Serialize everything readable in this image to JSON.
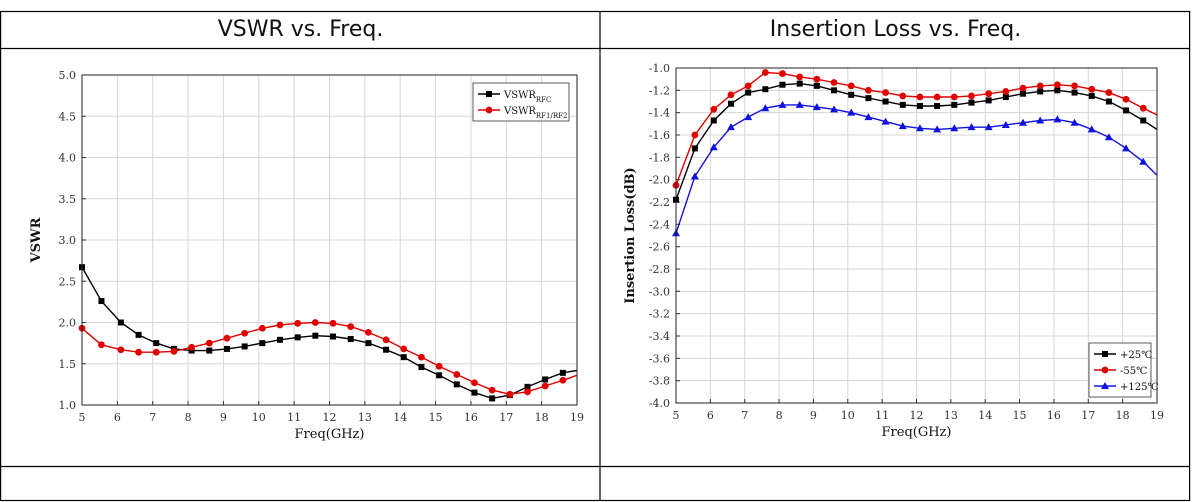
{
  "headers": {
    "left": "VSWR vs. Freq.",
    "right": "Insertion Loss vs. Freq."
  },
  "chart_data": [
    {
      "type": "line",
      "title": "",
      "xlabel": "Freq(GHz)",
      "ylabel": "VSWR",
      "xlim": [
        5,
        19
      ],
      "ylim": [
        1.0,
        5.0
      ],
      "xticks": [
        5,
        6,
        7,
        8,
        9,
        10,
        11,
        12,
        13,
        14,
        15,
        16,
        17,
        18,
        19
      ],
      "yticks": [
        1.0,
        1.5,
        2.0,
        2.5,
        3.0,
        3.5,
        4.0,
        4.5,
        5.0
      ],
      "ytick_labels": [
        "1.0",
        "1.5",
        "2.0",
        "2.5",
        "3.0",
        "3.5",
        "4.0",
        "4.5",
        "5.0"
      ],
      "grid": true,
      "legend_position": "top-right",
      "series": [
        {
          "name": "VSWR",
          "name_sub": "RFC",
          "color": "#000000",
          "marker": "square",
          "x": [
            5.0,
            5.55,
            6.1,
            6.6,
            7.1,
            7.6,
            8.1,
            8.6,
            9.1,
            9.6,
            10.1,
            10.6,
            11.1,
            11.6,
            12.1,
            12.6,
            13.1,
            13.6,
            14.1,
            14.6,
            15.1,
            15.6,
            16.1,
            16.6,
            17.1,
            17.6,
            18.1,
            18.6,
            19.0
          ],
          "y": [
            2.67,
            2.26,
            2.0,
            1.85,
            1.75,
            1.68,
            1.66,
            1.66,
            1.68,
            1.71,
            1.75,
            1.79,
            1.82,
            1.84,
            1.83,
            1.8,
            1.75,
            1.67,
            1.58,
            1.46,
            1.36,
            1.25,
            1.15,
            1.08,
            1.12,
            1.22,
            1.31,
            1.39,
            1.42
          ]
        },
        {
          "name": "VSWR",
          "name_sub": "RF1/RF2",
          "color": "#e00000",
          "marker": "circle",
          "x": [
            5.0,
            5.55,
            6.1,
            6.6,
            7.1,
            7.6,
            8.1,
            8.6,
            9.1,
            9.6,
            10.1,
            10.6,
            11.1,
            11.6,
            12.1,
            12.6,
            13.1,
            13.6,
            14.1,
            14.6,
            15.1,
            15.6,
            16.1,
            16.6,
            17.1,
            17.6,
            18.1,
            18.6,
            19.0
          ],
          "y": [
            1.93,
            1.73,
            1.67,
            1.64,
            1.64,
            1.65,
            1.7,
            1.75,
            1.81,
            1.87,
            1.93,
            1.97,
            1.99,
            2.0,
            1.99,
            1.95,
            1.88,
            1.79,
            1.68,
            1.58,
            1.47,
            1.37,
            1.27,
            1.18,
            1.13,
            1.16,
            1.23,
            1.3,
            1.36
          ]
        }
      ]
    },
    {
      "type": "line",
      "title": "",
      "xlabel": "Freq(GHz)",
      "ylabel": "Insertion Loss(dB)",
      "xlim": [
        5,
        19
      ],
      "ylim": [
        -4.0,
        -1.0
      ],
      "xticks": [
        5,
        6,
        7,
        8,
        9,
        10,
        11,
        12,
        13,
        14,
        15,
        16,
        17,
        18,
        19
      ],
      "yticks": [
        -4.0,
        -3.8,
        -3.6,
        -3.4,
        -3.2,
        -3.0,
        -2.8,
        -2.6,
        -2.4,
        -2.2,
        -2.0,
        -1.8,
        -1.6,
        -1.4,
        -1.2,
        -1.0
      ],
      "ytick_labels": [
        "-4.0",
        "-3.8",
        "-3.6",
        "-3.4",
        "-3.2",
        "-3.0",
        "-2.8",
        "-2.6",
        "-2.4",
        "-2.2",
        "-2.0",
        "-1.8",
        "-1.6",
        "-1.4",
        "-1.2",
        "-1.0"
      ],
      "grid": true,
      "legend_position": "bottom-right",
      "series": [
        {
          "name": "+25℃",
          "color": "#000000",
          "marker": "square",
          "x": [
            5.0,
            5.55,
            6.1,
            6.6,
            7.1,
            7.6,
            8.1,
            8.6,
            9.1,
            9.6,
            10.1,
            10.6,
            11.1,
            11.6,
            12.1,
            12.6,
            13.1,
            13.6,
            14.1,
            14.6,
            15.1,
            15.6,
            16.1,
            16.6,
            17.1,
            17.6,
            18.1,
            18.6,
            19.0
          ],
          "y": [
            -2.18,
            -1.72,
            -1.47,
            -1.32,
            -1.22,
            -1.19,
            -1.15,
            -1.14,
            -1.16,
            -1.2,
            -1.24,
            -1.27,
            -1.3,
            -1.33,
            -1.34,
            -1.34,
            -1.33,
            -1.31,
            -1.29,
            -1.26,
            -1.23,
            -1.21,
            -1.2,
            -1.22,
            -1.25,
            -1.3,
            -1.38,
            -1.47,
            -1.55
          ]
        },
        {
          "name": "-55℃",
          "color": "#e00000",
          "marker": "circle",
          "x": [
            5.0,
            5.55,
            6.1,
            6.6,
            7.1,
            7.6,
            8.1,
            8.6,
            9.1,
            9.6,
            10.1,
            10.6,
            11.1,
            11.6,
            12.1,
            12.6,
            13.1,
            13.6,
            14.1,
            14.6,
            15.1,
            15.6,
            16.1,
            16.6,
            17.1,
            17.6,
            18.1,
            18.6,
            19.0
          ],
          "y": [
            -2.05,
            -1.6,
            -1.37,
            -1.24,
            -1.16,
            -1.04,
            -1.05,
            -1.08,
            -1.1,
            -1.13,
            -1.16,
            -1.2,
            -1.22,
            -1.25,
            -1.26,
            -1.26,
            -1.26,
            -1.25,
            -1.23,
            -1.21,
            -1.18,
            -1.16,
            -1.15,
            -1.16,
            -1.19,
            -1.22,
            -1.28,
            -1.36,
            -1.42
          ]
        },
        {
          "name": "+125℃",
          "color": "#1010e0",
          "marker": "triangle",
          "x": [
            5.0,
            5.55,
            6.1,
            6.6,
            7.1,
            7.6,
            8.1,
            8.6,
            9.1,
            9.6,
            10.1,
            10.6,
            11.1,
            11.6,
            12.1,
            12.6,
            13.1,
            13.6,
            14.1,
            14.6,
            15.1,
            15.6,
            16.1,
            16.6,
            17.1,
            17.6,
            18.1,
            18.6,
            19.0
          ],
          "y": [
            -2.48,
            -1.97,
            -1.71,
            -1.53,
            -1.44,
            -1.36,
            -1.33,
            -1.33,
            -1.35,
            -1.37,
            -1.4,
            -1.44,
            -1.48,
            -1.52,
            -1.54,
            -1.55,
            -1.54,
            -1.53,
            -1.53,
            -1.51,
            -1.49,
            -1.47,
            -1.46,
            -1.49,
            -1.55,
            -1.62,
            -1.72,
            -1.84,
            -1.96
          ]
        }
      ]
    }
  ]
}
